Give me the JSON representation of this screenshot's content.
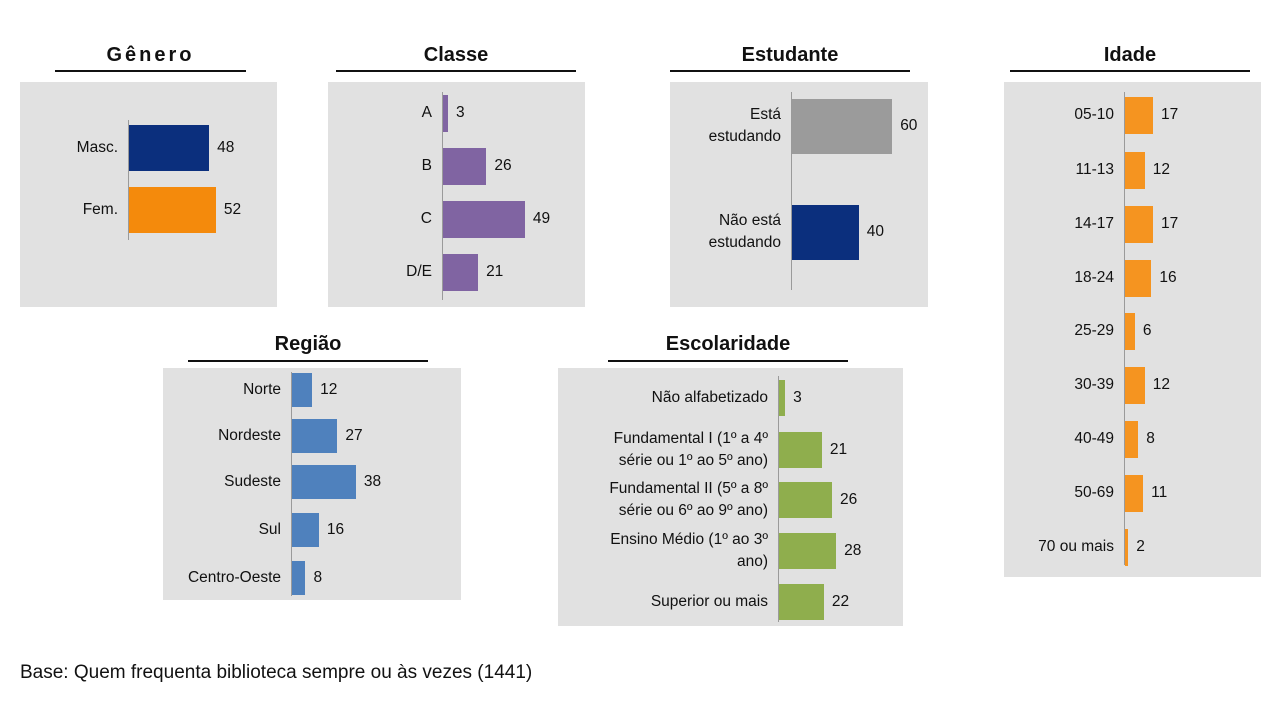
{
  "colors": {
    "navy": "#0b2f7d",
    "orange": "#f48a0c",
    "purple": "#8064a2",
    "gray": "#9b9b9b",
    "blue": "#4f81bd",
    "green": "#8fae4d",
    "orange2": "#f59420"
  },
  "chart_data": [
    {
      "id": "genero",
      "type": "bar",
      "orientation": "horizontal",
      "title": "Gênero",
      "categories": [
        "Masc.",
        "Fem."
      ],
      "values": [
        48,
        52
      ],
      "bar_colors": [
        "#0b2f7d",
        "#f48a0c"
      ]
    },
    {
      "id": "classe",
      "type": "bar",
      "orientation": "horizontal",
      "title": "Classe",
      "categories": [
        "A",
        "B",
        "C",
        "D/E"
      ],
      "values": [
        3,
        26,
        49,
        21
      ],
      "bar_colors": [
        "#8064a2",
        "#8064a2",
        "#8064a2",
        "#8064a2"
      ]
    },
    {
      "id": "estudante",
      "type": "bar",
      "orientation": "horizontal",
      "title": "Estudante",
      "categories": [
        "Está\nestudando",
        "Não está\nestudando"
      ],
      "values": [
        60,
        40
      ],
      "bar_colors": [
        "#9b9b9b",
        "#0b2f7d"
      ]
    },
    {
      "id": "idade",
      "type": "bar",
      "orientation": "horizontal",
      "title": "Idade",
      "categories": [
        "05-10",
        "11-13",
        "14-17",
        "18-24",
        "25-29",
        "30-39",
        "40-49",
        "50-69",
        "70 ou mais"
      ],
      "values": [
        17,
        12,
        17,
        16,
        6,
        12,
        8,
        11,
        2
      ],
      "bar_colors": [
        "#f59420",
        "#f59420",
        "#f59420",
        "#f59420",
        "#f59420",
        "#f59420",
        "#f59420",
        "#f59420",
        "#f59420"
      ]
    },
    {
      "id": "regiao",
      "type": "bar",
      "orientation": "horizontal",
      "title": "Região",
      "categories": [
        "Norte",
        "Nordeste",
        "Sudeste",
        "Sul",
        "Centro-Oeste"
      ],
      "values": [
        12,
        27,
        38,
        16,
        8
      ],
      "bar_colors": [
        "#4f81bd",
        "#4f81bd",
        "#4f81bd",
        "#4f81bd",
        "#4f81bd"
      ]
    },
    {
      "id": "escolaridade",
      "type": "bar",
      "orientation": "horizontal",
      "title": "Escolaridade",
      "categories": [
        "Não alfabetizado",
        "Fundamental I (1º a 4º\nsérie ou 1º ao 5º ano)",
        "Fundamental II (5º a 8º\nsérie ou 6º ao 9º ano)",
        "Ensino Médio (1º ao 3º\nano)",
        "Superior ou mais"
      ],
      "values": [
        3,
        21,
        26,
        28,
        22
      ],
      "bar_colors": [
        "#8fae4d",
        "#8fae4d",
        "#8fae4d",
        "#8fae4d",
        "#8fae4d"
      ]
    }
  ],
  "footer": "Base: Quem frequenta biblioteca sempre ou às vezes (1441)"
}
